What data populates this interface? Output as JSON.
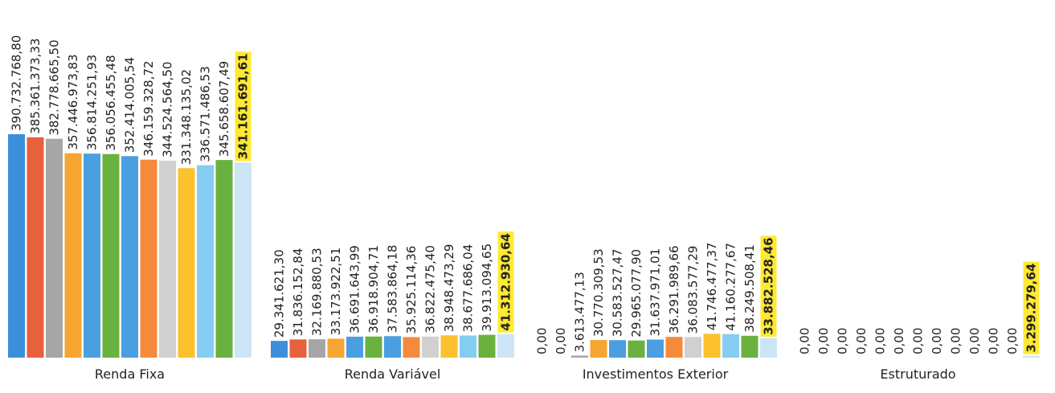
{
  "chart_data": {
    "type": "bar",
    "categories": [
      "Renda Fixa",
      "Renda Variável",
      "Investimentos Exterior",
      "Estruturado"
    ],
    "series": [
      {
        "color": "#3d8fdc",
        "values": [
          390732768.8,
          29341621.3,
          0,
          0
        ],
        "value_labels": [
          "390.732.768,80",
          "29.341.621,30",
          "0,00",
          "0,00"
        ]
      },
      {
        "color": "#e8603c",
        "values": [
          385361373.33,
          31836152.84,
          0,
          0
        ],
        "value_labels": [
          "385.361.373,33",
          "31.836.152,84",
          "0,00",
          "0,00"
        ]
      },
      {
        "color": "#a6a6a6",
        "values": [
          382778665.5,
          32169880.53,
          3613477.13,
          0
        ],
        "value_labels": [
          "382.778.665,50",
          "32.169.880,53",
          "3.613.477,13",
          "0,00"
        ]
      },
      {
        "color": "#f7a531",
        "values": [
          357446973.83,
          33173922.51,
          30770309.53,
          0
        ],
        "value_labels": [
          "357.446.973,83",
          "33.173.922,51",
          "30.770.309,53",
          "0,00"
        ]
      },
      {
        "color": "#4a9fe0",
        "values": [
          356814251.93,
          36691643.99,
          30583527.47,
          0
        ],
        "value_labels": [
          "356.814.251,93",
          "36.691.643,99",
          "30.583.527,47",
          "0,00"
        ]
      },
      {
        "color": "#6ab23f",
        "values": [
          356056455.48,
          36918904.71,
          29965077.9,
          0
        ],
        "value_labels": [
          "356.056.455,48",
          "36.918.904,71",
          "29.965.077,90",
          "0,00"
        ]
      },
      {
        "color": "#4a9fe0",
        "values": [
          352414005.54,
          37583864.18,
          31637971.01,
          0
        ],
        "value_labels": [
          "352.414.005,54",
          "37.583.864,18",
          "31.637.971,01",
          "0,00"
        ]
      },
      {
        "color": "#f58a3c",
        "values": [
          346159328.72,
          35925114.36,
          36291989.66,
          0
        ],
        "value_labels": [
          "346.159.328,72",
          "35.925.114,36",
          "36.291.989,66",
          "0,00"
        ]
      },
      {
        "color": "#d0d0d0",
        "values": [
          344524564.5,
          36822475.4,
          36083577.29,
          0
        ],
        "value_labels": [
          "344.524.564,50",
          "36.822.475,40",
          "36.083.577,29",
          "0,00"
        ]
      },
      {
        "color": "#fbc12e",
        "values": [
          331348135.02,
          38948473.29,
          41746477.37,
          0
        ],
        "value_labels": [
          "331.348.135,02",
          "38.948.473,29",
          "41.746.477,37",
          "0,00"
        ]
      },
      {
        "color": "#86cdf2",
        "values": [
          336571486.53,
          38677686.04,
          41160277.67,
          0
        ],
        "value_labels": [
          "336.571.486,53",
          "38.677.686,04",
          "41.160.277,67",
          "0,00"
        ]
      },
      {
        "color": "#6ab23f",
        "values": [
          345658607.49,
          39913094.65,
          38249508.41,
          0
        ],
        "value_labels": [
          "345.658.607,49",
          "39.913.094,65",
          "38.249.508,41",
          "0,00"
        ]
      },
      {
        "color": "#cde6f7",
        "highlight": "#ffe933",
        "values": [
          341161691.61,
          41312930.64,
          33882528.46,
          3299279.64
        ],
        "value_labels": [
          "341.161.691,61",
          "41.312.930,64",
          "33.882.528,46",
          "3.299.279,64"
        ]
      }
    ]
  }
}
